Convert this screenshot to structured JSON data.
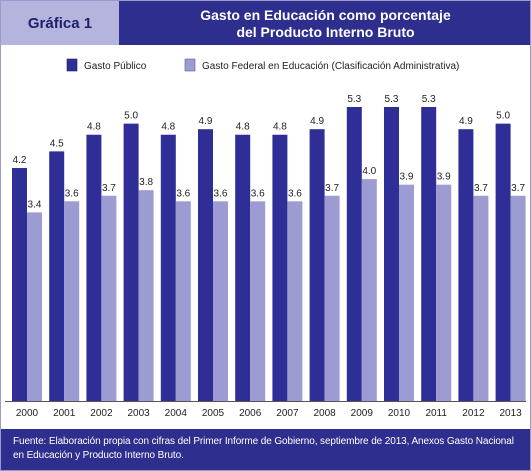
{
  "header": {
    "tab_label": "Gráfica 1",
    "title_line1": "Gasto en Educación como porcentaje",
    "title_line2": "del Producto Interno Bruto"
  },
  "footer": {
    "source_line1": "Fuente: Elaboración propia con cifras del Primer Informe de Gobierno, septiembre de 2013, Anexos Gasto Nacional",
    "source_line2": "en Educación y Producto Interno Bruto."
  },
  "colors": {
    "header_bg": "#2e2e8e",
    "tab_bg": "#b4b4dc",
    "series1": "#2e2e96",
    "series2": "#9c9cd2"
  },
  "chart_data": {
    "type": "bar",
    "categories": [
      "2000",
      "2001",
      "2002",
      "2003",
      "2004",
      "2005",
      "2006",
      "2007",
      "2008",
      "2009",
      "2010",
      "2011",
      "2012",
      "2013"
    ],
    "series": [
      {
        "name": "Gasto Público",
        "values": [
          4.2,
          4.5,
          4.8,
          5.0,
          4.8,
          4.9,
          4.8,
          4.8,
          4.9,
          5.3,
          5.3,
          5.3,
          4.9,
          5.0
        ],
        "labels": [
          "4.2",
          "4.5",
          "4.8",
          "5.0",
          "4.8",
          "4.9",
          "4.8",
          "4.8",
          "4.9",
          "5.3",
          "5.3",
          "5.3",
          "4.9",
          "5.0"
        ]
      },
      {
        "name": "Gasto Federal en Educación (Clasificación Administrativa)",
        "values": [
          3.4,
          3.6,
          3.7,
          3.8,
          3.6,
          3.6,
          3.6,
          3.6,
          3.7,
          4.0,
          3.9,
          3.9,
          3.7,
          3.7
        ],
        "labels": [
          "3.4",
          "3.6",
          "3.7",
          "3.8",
          "3.6",
          "3.6",
          "3.6",
          "3.6",
          "3.7",
          "4.0",
          "3.9",
          "3.9",
          "3.7",
          "3.7"
        ]
      }
    ],
    "ylim": [
      0,
      5.3
    ],
    "legend_position": "top-left",
    "grid": false
  }
}
